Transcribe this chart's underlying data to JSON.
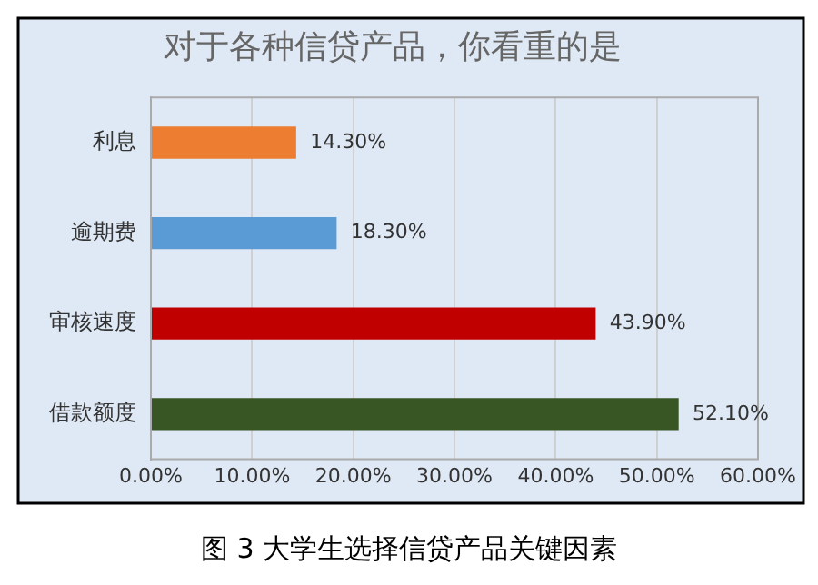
{
  "chart_data": {
    "type": "bar",
    "orientation": "horizontal",
    "title": "对于各种信贷产品，你看重的是",
    "categories": [
      "利息",
      "逾期费",
      "审核速度",
      "借款额度"
    ],
    "values": [
      14.3,
      18.3,
      43.9,
      52.1
    ],
    "colors": [
      "#ed7d31",
      "#5b9bd5",
      "#c00000",
      "#375623"
    ],
    "value_labels": [
      "14.30%",
      "18.30%",
      "43.90%",
      "52.10%"
    ],
    "xlim": [
      0,
      60
    ],
    "xticks": [
      {
        "value": 0,
        "label": "0.00%"
      },
      {
        "value": 10,
        "label": "10.00%"
      },
      {
        "value": 20,
        "label": "20.00%"
      },
      {
        "value": 30,
        "label": "30.00%"
      },
      {
        "value": 40,
        "label": "40.00%"
      },
      {
        "value": 50,
        "label": "50.00%"
      },
      {
        "value": 60,
        "label": "60.00%"
      }
    ],
    "grid": "x",
    "legend": false,
    "annotations": [
      "图 3 大学生选择信贷产品关键因素"
    ]
  }
}
